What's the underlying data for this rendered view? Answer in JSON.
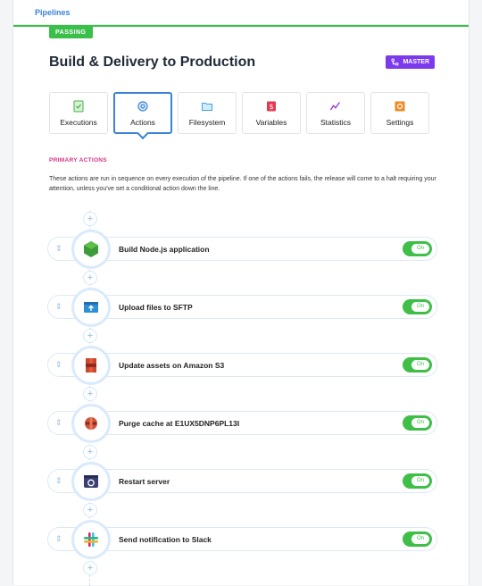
{
  "breadcrumb": "Pipelines",
  "status": "PASSING",
  "pipeline": {
    "title": "Build & Delivery to Production",
    "branch": "MASTER"
  },
  "tabs": [
    {
      "label": "Executions",
      "icon": "checklist-icon",
      "color": "#4caf50"
    },
    {
      "label": "Actions",
      "icon": "gear-icon",
      "color": "#3b82d6"
    },
    {
      "label": "Filesystem",
      "icon": "folder-icon",
      "color": "#3ba3e6"
    },
    {
      "label": "Variables",
      "icon": "dollar-icon",
      "color": "#e53950"
    },
    {
      "label": "Statistics",
      "icon": "chart-line-icon",
      "color": "#7c3aed"
    },
    {
      "label": "Settings",
      "icon": "settings-icon",
      "color": "#f08a24"
    }
  ],
  "section": {
    "heading": "PRIMARY ACTIONS",
    "description": "These actions are run in sequence on every execution of the pipeline. If one of the actions fails, the release will come to a halt requiring your attention, unless you've set a conditional action down the line."
  },
  "actions": [
    {
      "label": "Build Node.js application",
      "icon": "nodejs-icon",
      "toggle": "On"
    },
    {
      "label": "Upload files to SFTP",
      "icon": "sftp-upload-icon",
      "toggle": "On"
    },
    {
      "label": "Update assets on Amazon S3",
      "icon": "amazon-s3-icon",
      "toggle": "On"
    },
    {
      "label": "Purge cache at E1UX5DNP6PL13I",
      "icon": "cloudfront-icon",
      "toggle": "On"
    },
    {
      "label": "Restart server",
      "icon": "server-restart-icon",
      "toggle": "On"
    },
    {
      "label": "Send notification to Slack",
      "icon": "slack-icon",
      "toggle": "On"
    }
  ],
  "colors": {
    "accent": "#3b82d6",
    "success": "#3ac04a",
    "branch": "#7c3aed",
    "section": "#d63384"
  }
}
